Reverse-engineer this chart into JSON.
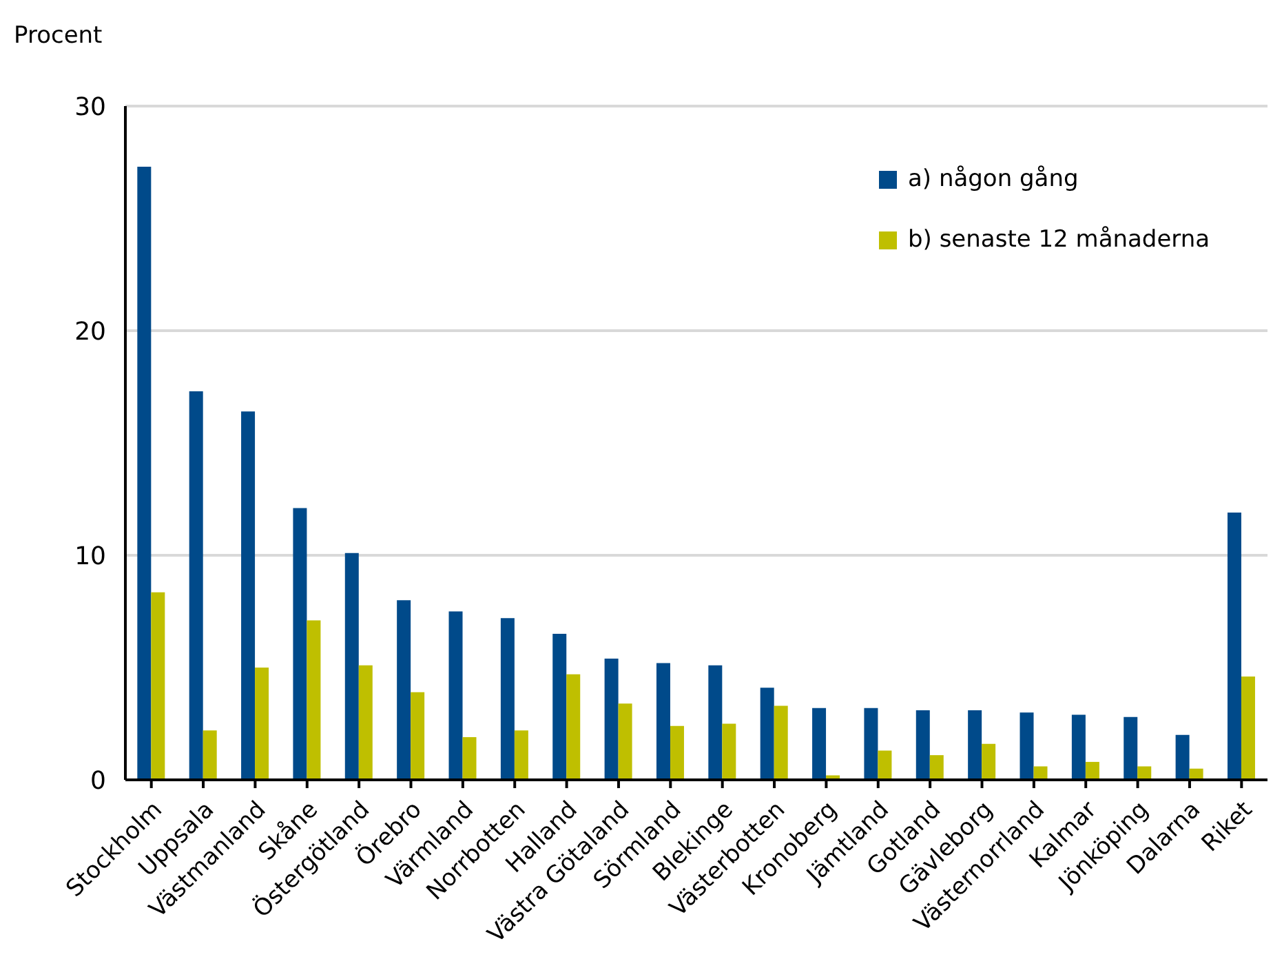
{
  "chart_data": {
    "type": "bar",
    "ylabel": "Procent",
    "categories": [
      "Stockholm",
      "Uppsala",
      "Västmanland",
      "Skåne",
      "Östergötland",
      "Örebro",
      "Värmland",
      "Norrbotten",
      "Halland",
      "Västra Götaland",
      "Sörmland",
      "Blekinge",
      "Västerbotten",
      "Kronoberg",
      "Jämtland",
      "Gotland",
      "Gävleborg",
      "Västernorrland",
      "Kalmar",
      "Jönköping",
      "Dalarna",
      "Riket"
    ],
    "series": [
      {
        "name": "a) någon gång",
        "color": "#004a8a",
        "values": [
          27.3,
          17.3,
          16.4,
          12.1,
          10.1,
          8.0,
          7.5,
          7.2,
          6.5,
          5.4,
          5.2,
          5.1,
          4.1,
          3.2,
          3.2,
          3.1,
          3.1,
          3.0,
          2.9,
          2.8,
          2.0,
          11.9
        ]
      },
      {
        "name": "b) senaste 12 månaderna",
        "color": "#bfbf00",
        "values": [
          8.35,
          2.2,
          5.0,
          7.1,
          5.1,
          3.9,
          1.9,
          2.2,
          4.7,
          3.4,
          2.4,
          2.5,
          3.3,
          0.2,
          1.3,
          1.1,
          1.6,
          0.6,
          0.8,
          0.6,
          0.5,
          4.6
        ]
      }
    ],
    "ylim": [
      0,
      30
    ],
    "yticks": [
      0,
      10,
      20,
      30
    ],
    "grid": "y",
    "legend": "top right"
  }
}
